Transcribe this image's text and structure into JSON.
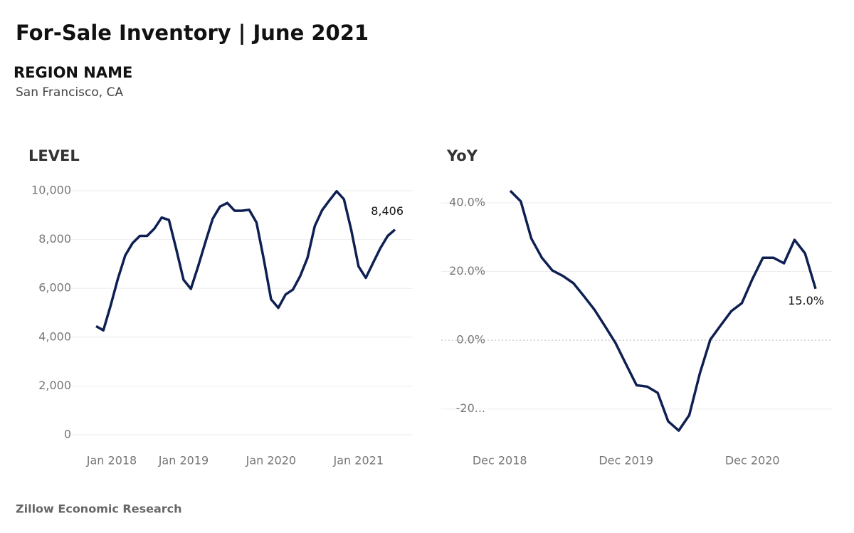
{
  "title": "For-Sale Inventory | June 2021",
  "region_heading": "REGION NAME",
  "region": "San Francisco, CA",
  "source": "Zillow Economic Research",
  "chart_data": [
    {
      "type": "line",
      "title": "LEVEL",
      "x": [
        "2018-01",
        "2018-02",
        "2018-03",
        "2018-04",
        "2018-05",
        "2018-06",
        "2018-07",
        "2018-08",
        "2018-09",
        "2018-10",
        "2018-11",
        "2018-12",
        "2019-01",
        "2019-02",
        "2019-03",
        "2019-04",
        "2019-05",
        "2019-06",
        "2019-07",
        "2019-08",
        "2019-09",
        "2019-10",
        "2019-11",
        "2019-12",
        "2020-01",
        "2020-02",
        "2020-03",
        "2020-04",
        "2020-05",
        "2020-06",
        "2020-07",
        "2020-08",
        "2020-09",
        "2020-10",
        "2020-11",
        "2020-12",
        "2021-01",
        "2021-02",
        "2021-03",
        "2021-04",
        "2021-05",
        "2021-06"
      ],
      "series": [
        {
          "color": "#0e1f52",
          "values": [
            4450,
            4280,
            5300,
            6400,
            7350,
            7850,
            8150,
            8150,
            8450,
            8900,
            8800,
            7600,
            6350,
            5980,
            6900,
            7900,
            8850,
            9350,
            9500,
            9180,
            9180,
            9220,
            8700,
            7200,
            5550,
            5200,
            5750,
            5950,
            6500,
            7250,
            8550,
            9200,
            9600,
            9980,
            9650,
            8400,
            6900,
            6430,
            7050,
            7650,
            8150,
            8406
          ],
          "value_labels": [
            null,
            null,
            null,
            null,
            null,
            null,
            null,
            null,
            null,
            null,
            null,
            null,
            null,
            null,
            null,
            null,
            null,
            null,
            null,
            null,
            null,
            null,
            null,
            null,
            null,
            null,
            null,
            null,
            null,
            null,
            null,
            null,
            null,
            null,
            null,
            null,
            null,
            null,
            null,
            null,
            null,
            "8,406"
          ]
        }
      ],
      "ylim": [
        0,
        10000
      ],
      "yticks": [
        0,
        {
          "value": 2000,
          "label": "2,000"
        },
        {
          "value": 4000,
          "label": "4,000"
        },
        {
          "value": 6000,
          "label": "6,000"
        },
        {
          "value": 8000,
          "label": "8,000"
        },
        {
          "value": 10000,
          "label": "10,000"
        }
      ],
      "xticks": [
        {
          "value": "2018-01",
          "label": "Jan 2018"
        },
        {
          "value": "2019-01",
          "label": "Jan 2019"
        },
        {
          "value": "2020-01",
          "label": "Jan 2020"
        },
        {
          "value": "2021-01",
          "label": "Jan 2021"
        }
      ],
      "grid": true
    },
    {
      "type": "line",
      "title": "YoY",
      "x": [
        "2019-01",
        "2019-02",
        "2019-03",
        "2019-04",
        "2019-05",
        "2019-06",
        "2019-07",
        "2019-08",
        "2019-09",
        "2019-10",
        "2019-11",
        "2019-12",
        "2020-01",
        "2020-02",
        "2020-03",
        "2020-04",
        "2020-05",
        "2020-06",
        "2020-07",
        "2020-08",
        "2020-09",
        "2020-10",
        "2020-11",
        "2020-12",
        "2021-01",
        "2021-02",
        "2021-03",
        "2021-04",
        "2021-05",
        "2021-06"
      ],
      "series": [
        {
          "color": "#0e1f52",
          "values": [
            43.5,
            40.4,
            29.6,
            24.0,
            20.3,
            18.7,
            16.6,
            12.8,
            8.9,
            4.1,
            -0.8,
            -7.0,
            -13.1,
            -13.5,
            -15.3,
            -23.6,
            -26.3,
            -21.8,
            -9.7,
            0.2,
            4.4,
            8.5,
            10.8,
            17.8,
            24.0,
            24.0,
            22.4,
            29.2,
            25.3,
            15.0
          ],
          "value_labels": [
            null,
            null,
            null,
            null,
            null,
            null,
            null,
            null,
            null,
            null,
            null,
            null,
            null,
            null,
            null,
            null,
            null,
            null,
            null,
            null,
            null,
            null,
            null,
            null,
            null,
            null,
            null,
            null,
            null,
            "15.0%"
          ]
        }
      ],
      "ylim": [
        -30,
        46
      ],
      "yticks": [
        {
          "value": -20,
          "label": "-20..."
        },
        {
          "value": 0,
          "label": "0.0%"
        },
        {
          "value": 20,
          "label": "20.0%"
        },
        {
          "value": 40,
          "label": "40.0%"
        }
      ],
      "xticks": [
        {
          "value": "2018-12",
          "label": "Dec 2018"
        },
        {
          "value": "2019-12",
          "label": "Dec 2019"
        },
        {
          "value": "2020-12",
          "label": "Dec 2020"
        }
      ],
      "grid": true,
      "zero_line": true
    }
  ]
}
